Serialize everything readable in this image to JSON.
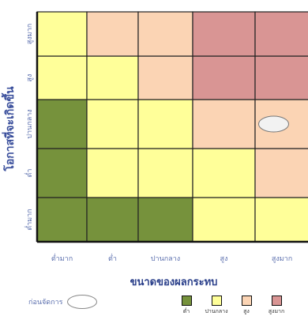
{
  "chart_data": {
    "type": "heatmap",
    "title": "",
    "xlabel": "ขนาดของผลกระทบ",
    "ylabel": "โอกาสที่จะเกิดขึ้น",
    "x_categories": [
      "ต่ำมาก",
      "ต่ำ",
      "ปานกลาง",
      "สูง",
      "สูงมาก"
    ],
    "y_categories": [
      "ต่ำมาก",
      "ต่ำ",
      "ปานกลาง",
      "สูง",
      "สูงมาก"
    ],
    "levels": [
      {
        "name": "ต่ำ",
        "color": "#76923c"
      },
      {
        "name": "ปานกลาง",
        "color": "#ffff99"
      },
      {
        "name": "สูง",
        "color": "#fbd4b4"
      },
      {
        "name": "สูงมาก",
        "color": "#d99594"
      }
    ],
    "cells": [
      [
        0,
        0,
        0,
        1,
        1
      ],
      [
        0,
        1,
        1,
        1,
        2
      ],
      [
        0,
        1,
        1,
        2,
        2
      ],
      [
        1,
        1,
        2,
        3,
        3
      ],
      [
        1,
        2,
        2,
        3,
        3
      ]
    ],
    "marker": {
      "x": "สูงมาก",
      "y": "ปานกลาง",
      "label": "ก่อนจัดการ"
    },
    "note_label": "ก่อนจัดการ",
    "axis_color": "#5b6fae"
  }
}
